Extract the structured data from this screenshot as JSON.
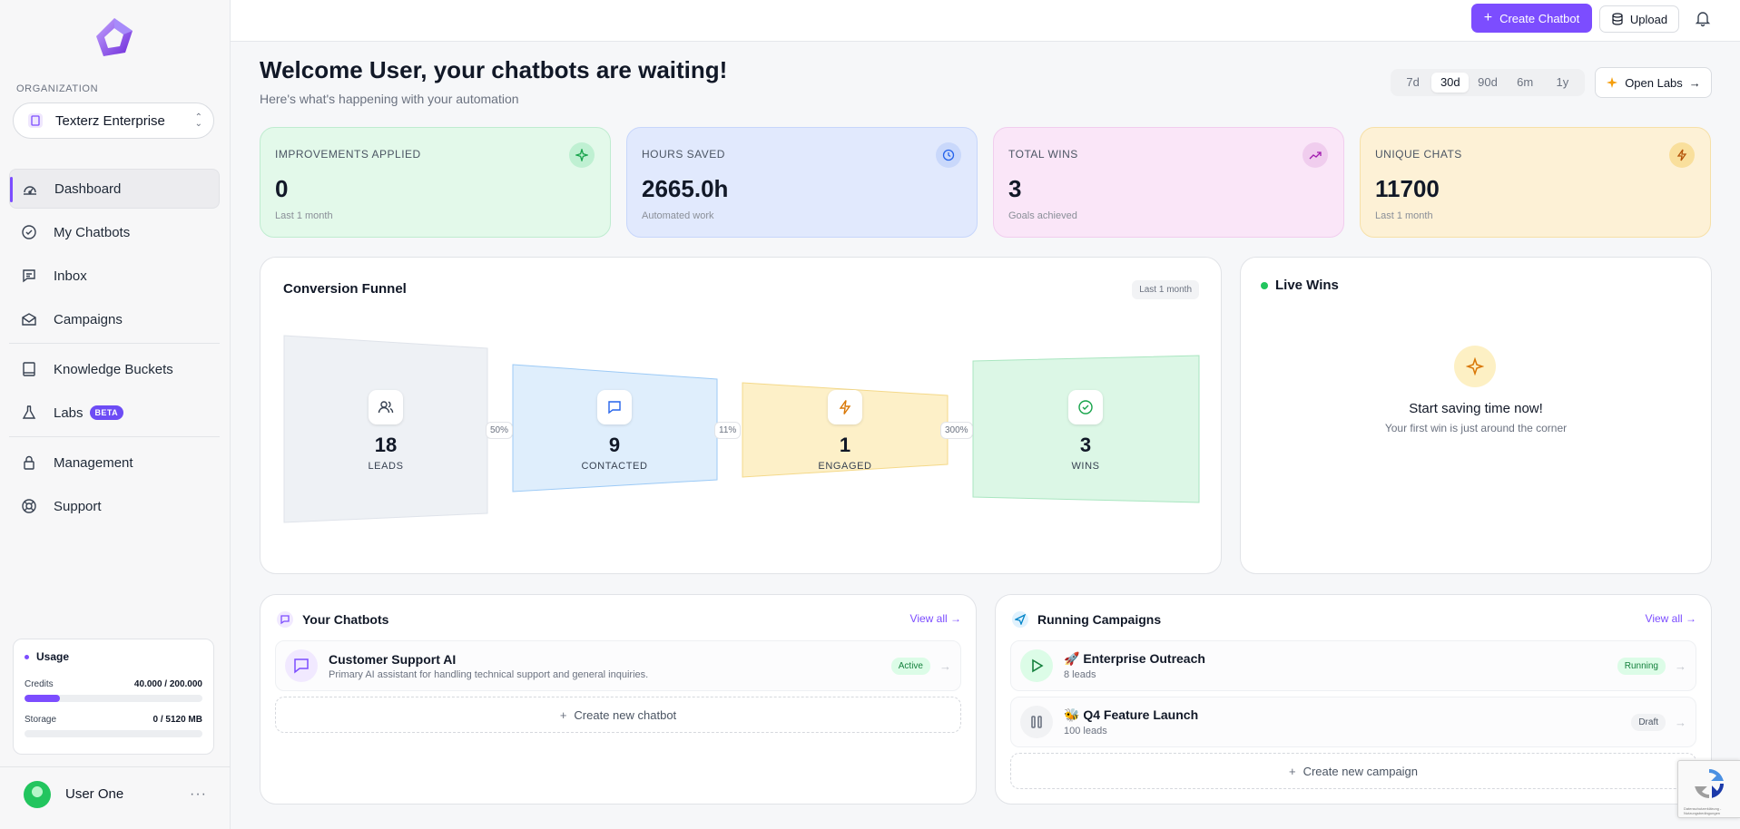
{
  "sidebar": {
    "org_label": "ORGANIZATION",
    "org_name": "Texterz Enterprise",
    "nav": [
      {
        "label": "Dashboard"
      },
      {
        "label": "My Chatbots"
      },
      {
        "label": "Inbox"
      },
      {
        "label": "Campaigns"
      },
      {
        "label": "Knowledge Buckets"
      },
      {
        "label": "Labs",
        "badge": "BETA"
      },
      {
        "label": "Management"
      },
      {
        "label": "Support"
      }
    ],
    "usage": {
      "title": "Usage",
      "credits_label": "Credits",
      "credits_value": "40.000 / 200.000",
      "credits_fraction": 0.2,
      "storage_label": "Storage",
      "storage_value": "0 / 5120 MB",
      "storage_fraction": 0
    },
    "user_name": "User One"
  },
  "topbar": {
    "create_label": "Create Chatbot",
    "upload_label": "Upload"
  },
  "header": {
    "title": "Welcome User, your chatbots are waiting!",
    "subtitle": "Here's what's happening with your automation",
    "ranges": [
      "7d",
      "30d",
      "90d",
      "6m",
      "1y"
    ],
    "selected_range": "30d",
    "open_labs": "Open Labs"
  },
  "stats": [
    {
      "title": "IMPROVEMENTS APPLIED",
      "value": "0",
      "note": "Last 1 month",
      "icon": "sparkle-icon"
    },
    {
      "title": "HOURS SAVED",
      "value": "2665.0h",
      "note": "Automated work",
      "icon": "clock-icon"
    },
    {
      "title": "TOTAL WINS",
      "value": "3",
      "note": "Goals achieved",
      "icon": "trending-up-icon"
    },
    {
      "title": "UNIQUE CHATS",
      "value": "11700",
      "note": "Last 1 month",
      "icon": "bolt-icon"
    }
  ],
  "funnel": {
    "title": "Conversion Funnel",
    "tag": "Last 1 month",
    "stages": [
      {
        "value": "18",
        "label": "LEADS"
      },
      {
        "value": "9",
        "label": "CONTACTED"
      },
      {
        "value": "1",
        "label": "ENGAGED"
      },
      {
        "value": "3",
        "label": "WINS"
      }
    ],
    "conversions": [
      "50%",
      "11%",
      "300%"
    ]
  },
  "live_wins": {
    "title": "Live Wins",
    "heading": "Start saving time now!",
    "subtext": "Your first win is just around the corner"
  },
  "chatbots": {
    "title": "Your Chatbots",
    "view_all": "View all →",
    "items": [
      {
        "name": "Customer Support AI",
        "desc": "Primary AI assistant for handling technical support and general inquiries.",
        "status": "Active"
      }
    ],
    "create_label": "Create new chatbot"
  },
  "campaigns": {
    "title": "Running Campaigns",
    "view_all": "View all →",
    "items": [
      {
        "name": "🚀 Enterprise Outreach",
        "desc": "8 leads",
        "status": "Running"
      },
      {
        "name": "🐝 Q4 Feature Launch",
        "desc": "100 leads",
        "status": "Draft"
      }
    ],
    "create_label": "Create new campaign"
  },
  "recaptcha_text": "Datenschutzerklärung - Nutzungsbedingungen"
}
